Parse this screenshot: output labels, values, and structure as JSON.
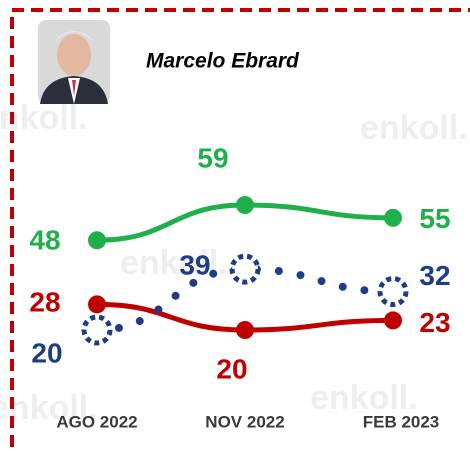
{
  "chart_data": {
    "type": "line",
    "title": "Marcelo Ebrard",
    "watermark": "enkoll.",
    "categories": [
      "AGO 2022",
      "NOV 2022",
      "FEB 2023"
    ],
    "series": [
      {
        "color": "#1fb04b",
        "values": [
          48,
          59,
          55
        ],
        "style": "solid"
      },
      {
        "color": "#c00000",
        "values": [
          28,
          20,
          23
        ],
        "style": "solid"
      },
      {
        "color": "#1f3c88",
        "values": [
          20,
          39,
          32
        ],
        "style": "dotted"
      }
    ]
  }
}
